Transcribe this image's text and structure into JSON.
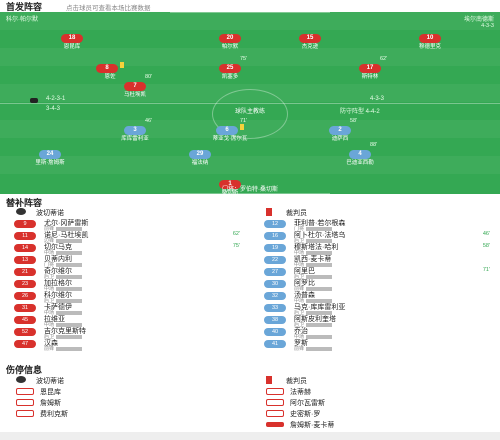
{
  "header": {
    "title": "首发阵容",
    "note": "点击球员可查看本场比赛数据"
  },
  "pitch": {
    "team_left": "科尔·帕尔默",
    "team_right": "埃尔南德斯",
    "team_right_sub": "4-3-3",
    "formation_left": "4-2-3-1",
    "formation_right": "4-3-3",
    "formation_left_sub": "3-4-3",
    "formation_right_sub": "防守阵型 4-4-2",
    "coach": "球队主教练",
    "bottom_label": "门将：罗伯特·桑切斯",
    "players": [
      {
        "num": "18",
        "name": "恩昆库",
        "color": "red",
        "evt": ""
      },
      {
        "num": "20",
        "name": "帕尔默",
        "color": "red",
        "evt": ""
      },
      {
        "num": "15",
        "name": "杰克逊",
        "color": "red",
        "evt": ""
      },
      {
        "num": "10",
        "name": "穆德里克",
        "color": "red",
        "evt": ""
      },
      {
        "num": "8",
        "name": "恩佐",
        "color": "red",
        "evt": "",
        "card": true
      },
      {
        "num": "25",
        "name": "凯塞多",
        "color": "red",
        "evt": "75'"
      },
      {
        "num": "17",
        "name": "斯特林",
        "color": "red",
        "evt": "62'"
      },
      {
        "num": "7",
        "name": "马杜埃凯",
        "color": "red",
        "evt": "80'"
      },
      {
        "num": "3",
        "name": "库库雷利亚",
        "color": "blue",
        "evt": "46'"
      },
      {
        "num": "6",
        "name": "蒂亚戈·席尔瓦",
        "color": "blue",
        "evt": "71'",
        "card": true
      },
      {
        "num": "2",
        "name": "迪萨西",
        "color": "blue",
        "evt": "58'"
      },
      {
        "num": "24",
        "name": "里斯·詹姆斯",
        "color": "blue",
        "evt": ""
      },
      {
        "num": "29",
        "name": "福法纳",
        "color": "blue",
        "evt": ""
      },
      {
        "num": "4",
        "name": "巴迪亚西勒",
        "color": "blue",
        "evt": "88'"
      },
      {
        "num": "1",
        "name": "桑切斯",
        "color": "red",
        "evt": ""
      }
    ]
  },
  "bench": {
    "title": "替补阵容",
    "coach_left": "波切蒂诺",
    "coach_right": "裁判员",
    "left": [
      {
        "num": "9",
        "name": "尤尔·冈萨雷斯",
        "pos": "前锋",
        "color": "red",
        "evt": ""
      },
      {
        "num": "11",
        "name": "诺尼·马杜埃凯",
        "pos": "边锋",
        "color": "red",
        "evt": "62'"
      },
      {
        "num": "14",
        "name": "切尔马克",
        "pos": "中场",
        "color": "red",
        "evt": "75'"
      },
      {
        "num": "13",
        "name": "贝蒂内利",
        "pos": "门将",
        "color": "red",
        "evt": ""
      },
      {
        "num": "21",
        "name": "奇尔维尔",
        "pos": "后卫",
        "color": "red",
        "evt": ""
      },
      {
        "num": "23",
        "name": "加拉格尔",
        "pos": "中场",
        "color": "red",
        "evt": ""
      },
      {
        "num": "26",
        "name": "科尔维尔",
        "pos": "后卫",
        "color": "red",
        "evt": ""
      },
      {
        "num": "31",
        "name": "卡萨德伊",
        "pos": "中场",
        "color": "red",
        "evt": ""
      },
      {
        "num": "45",
        "name": "拉维亚",
        "pos": "中场",
        "color": "red",
        "evt": ""
      },
      {
        "num": "52",
        "name": "吉尔克里斯特",
        "pos": "后卫",
        "color": "red",
        "evt": ""
      },
      {
        "num": "47",
        "name": "汉森",
        "pos": "前锋",
        "color": "red",
        "evt": ""
      }
    ],
    "right": [
      {
        "num": "12",
        "name": "菲利普·若尔根森",
        "pos": "门将",
        "color": "blue",
        "evt": ""
      },
      {
        "num": "16",
        "name": "阿卜杜尔·法塔乌",
        "pos": "后卫",
        "color": "blue",
        "evt": "46'"
      },
      {
        "num": "19",
        "name": "穆斯塔法·哈利",
        "pos": "中场",
        "color": "blue",
        "evt": "58'"
      },
      {
        "num": "22",
        "name": "凯西·麦卡蒂",
        "pos": "中场",
        "color": "blue",
        "evt": ""
      },
      {
        "num": "27",
        "name": "阿里巴",
        "pos": "后卫",
        "color": "blue",
        "evt": "71'"
      },
      {
        "num": "30",
        "name": "阿罗比",
        "pos": "前锋",
        "color": "blue",
        "evt": ""
      },
      {
        "num": "32",
        "name": "汤普森",
        "pos": "中场",
        "color": "blue",
        "evt": ""
      },
      {
        "num": "33",
        "name": "马克·库库雷利亚",
        "pos": "后卫",
        "color": "blue",
        "evt": ""
      },
      {
        "num": "38",
        "name": "阿斯皮利奎塔",
        "pos": "后卫",
        "color": "blue",
        "evt": ""
      },
      {
        "num": "40",
        "name": "乔治",
        "pos": "中场",
        "color": "blue",
        "evt": ""
      },
      {
        "num": "41",
        "name": "罗斯",
        "pos": "前锋",
        "color": "blue",
        "evt": ""
      }
    ]
  },
  "injury": {
    "title": "伤停信息",
    "coach_left": "波切蒂诺",
    "coach_right": "裁判员",
    "left": [
      "恩昆库",
      "詹姆斯",
      "费利克斯"
    ],
    "right": [
      "法蒂赫",
      "阿尔瓦雷斯",
      "史密斯·罗"
    ],
    "right_last": "詹姆斯·麦卡蒂"
  }
}
